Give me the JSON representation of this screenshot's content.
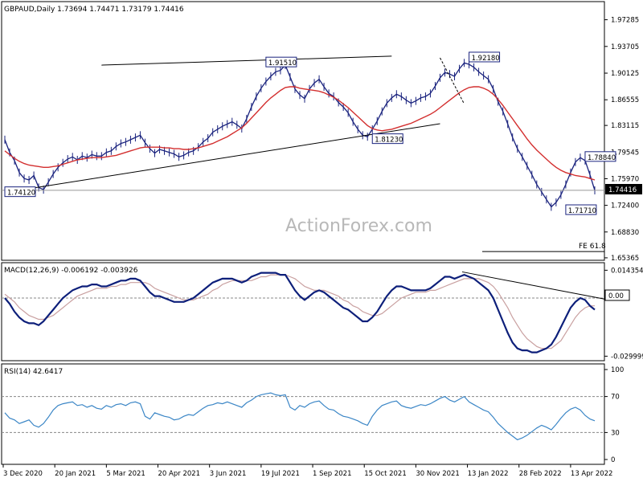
{
  "chart_data": [
    {
      "type": "line",
      "title": "GBPAUD,Daily  1.73694 1.74471 1.73179 1.74416",
      "y_ticks": [
        "1.97285",
        "1.93705",
        "1.90125",
        "1.86555",
        "1.83115",
        "1.79545",
        "1.75970",
        "1.72400",
        "1.68830",
        "1.65365"
      ],
      "ylim": [
        1.6525,
        1.995
      ],
      "current_price": "1.74416",
      "watermark": "ActionForex.com",
      "annotations": [
        {
          "text": "1.74120",
          "x": 0,
          "y": 1.7412
        },
        {
          "text": "1.91510",
          "x": 27,
          "y": 1.9151
        },
        {
          "text": "1.81230",
          "x": 38,
          "y": 1.8123
        },
        {
          "text": "1.92180",
          "x": 48,
          "y": 1.9218
        },
        {
          "text": "1.78840",
          "x": 60,
          "y": 1.7884
        },
        {
          "text": "1.71710",
          "x": 58,
          "y": 1.7171
        }
      ],
      "fe_label": "FE 61.8",
      "fe_level": 1.662,
      "close_series": [
        1.812,
        1.795,
        1.784,
        1.768,
        1.76,
        1.758,
        1.764,
        1.748,
        1.745,
        1.755,
        1.766,
        1.775,
        1.781,
        1.786,
        1.789,
        1.785,
        1.79,
        1.788,
        1.792,
        1.79,
        1.79,
        1.795,
        1.797,
        1.803,
        1.807,
        1.809,
        1.812,
        1.815,
        1.818,
        1.808,
        1.8,
        1.794,
        1.799,
        1.797,
        1.795,
        1.793,
        1.789,
        1.791,
        1.795,
        1.797,
        1.802,
        1.809,
        1.814,
        1.822,
        1.826,
        1.83,
        1.833,
        1.836,
        1.832,
        1.827,
        1.84,
        1.856,
        1.87,
        1.881,
        1.89,
        1.897,
        1.903,
        1.905,
        1.912,
        1.896,
        1.88,
        1.872,
        1.867,
        1.88,
        1.888,
        1.893,
        1.883,
        1.874,
        1.87,
        1.862,
        1.856,
        1.848,
        1.836,
        1.826,
        1.818,
        1.816,
        1.826,
        1.837,
        1.85,
        1.861,
        1.868,
        1.873,
        1.87,
        1.865,
        1.861,
        1.864,
        1.868,
        1.87,
        1.874,
        1.884,
        1.895,
        1.902,
        1.9,
        1.897,
        1.907,
        1.915,
        1.913,
        1.909,
        1.903,
        1.898,
        1.893,
        1.88,
        1.863,
        1.85,
        1.833,
        1.815,
        1.8,
        1.789,
        1.777,
        1.765,
        1.752,
        1.742,
        1.732,
        1.722,
        1.728,
        1.738,
        1.752,
        1.768,
        1.782,
        1.788,
        1.784,
        1.765,
        1.744
      ],
      "ma_series": [
        1.797,
        1.792,
        1.787,
        1.783,
        1.78,
        1.778,
        1.777,
        1.776,
        1.775,
        1.775,
        1.776,
        1.777,
        1.779,
        1.781,
        1.783,
        1.785,
        1.786,
        1.787,
        1.788,
        1.788,
        1.788,
        1.789,
        1.79,
        1.791,
        1.793,
        1.795,
        1.797,
        1.799,
        1.801,
        1.802,
        1.802,
        1.802,
        1.802,
        1.801,
        1.801,
        1.8,
        1.8,
        1.799,
        1.799,
        1.8,
        1.801,
        1.803,
        1.805,
        1.807,
        1.81,
        1.813,
        1.816,
        1.82,
        1.824,
        1.828,
        1.834,
        1.841,
        1.848,
        1.855,
        1.862,
        1.868,
        1.873,
        1.878,
        1.882,
        1.883,
        1.883,
        1.881,
        1.88,
        1.879,
        1.878,
        1.877,
        1.875,
        1.872,
        1.869,
        1.865,
        1.86,
        1.855,
        1.849,
        1.843,
        1.837,
        1.831,
        1.827,
        1.825,
        1.824,
        1.825,
        1.826,
        1.828,
        1.83,
        1.832,
        1.834,
        1.837,
        1.84,
        1.843,
        1.846,
        1.85,
        1.855,
        1.86,
        1.865,
        1.87,
        1.875,
        1.879,
        1.882,
        1.883,
        1.883,
        1.881,
        1.878,
        1.873,
        1.866,
        1.858,
        1.849,
        1.84,
        1.831,
        1.822,
        1.813,
        1.805,
        1.798,
        1.792,
        1.786,
        1.78,
        1.775,
        1.771,
        1.768,
        1.766,
        1.764,
        1.763,
        1.762,
        1.76,
        1.758
      ]
    },
    {
      "type": "line",
      "title": "MACD(12,26,9) -0.006192 -0.003926",
      "y_ticks": [
        "0.014354",
        "0.00",
        "-0.029999"
      ],
      "ylim": [
        -0.0315,
        0.017
      ],
      "current_value": "0.00",
      "macd_series": [
        0.0,
        -0.003,
        -0.007,
        -0.01,
        -0.012,
        -0.013,
        -0.013,
        -0.014,
        -0.012,
        -0.009,
        -0.006,
        -0.003,
        0.0,
        0.002,
        0.004,
        0.005,
        0.006,
        0.006,
        0.007,
        0.007,
        0.006,
        0.006,
        0.007,
        0.008,
        0.009,
        0.009,
        0.01,
        0.01,
        0.009,
        0.006,
        0.003,
        0.001,
        0.001,
        0.0,
        -0.001,
        -0.002,
        -0.002,
        -0.002,
        -0.001,
        0.0,
        0.002,
        0.004,
        0.006,
        0.008,
        0.009,
        0.01,
        0.01,
        0.01,
        0.009,
        0.008,
        0.009,
        0.011,
        0.012,
        0.013,
        0.013,
        0.013,
        0.013,
        0.012,
        0.012,
        0.008,
        0.004,
        0.001,
        -0.001,
        0.001,
        0.003,
        0.004,
        0.003,
        0.001,
        -0.001,
        -0.003,
        -0.005,
        -0.006,
        -0.008,
        -0.01,
        -0.012,
        -0.012,
        -0.01,
        -0.007,
        -0.003,
        0.001,
        0.004,
        0.006,
        0.006,
        0.005,
        0.004,
        0.004,
        0.004,
        0.004,
        0.005,
        0.007,
        0.009,
        0.011,
        0.011,
        0.01,
        0.011,
        0.012,
        0.011,
        0.01,
        0.008,
        0.006,
        0.004,
        0.0,
        -0.006,
        -0.012,
        -0.018,
        -0.023,
        -0.026,
        -0.027,
        -0.027,
        -0.028,
        -0.028,
        -0.027,
        -0.026,
        -0.024,
        -0.02,
        -0.015,
        -0.01,
        -0.005,
        -0.002,
        0.0,
        -0.001,
        -0.004,
        -0.006
      ],
      "signal_series": [
        0.002,
        0.0,
        -0.002,
        -0.005,
        -0.007,
        -0.009,
        -0.01,
        -0.011,
        -0.011,
        -0.01,
        -0.009,
        -0.007,
        -0.005,
        -0.003,
        -0.001,
        0.001,
        0.002,
        0.003,
        0.004,
        0.005,
        0.005,
        0.005,
        0.006,
        0.006,
        0.007,
        0.007,
        0.008,
        0.008,
        0.008,
        0.008,
        0.007,
        0.005,
        0.004,
        0.003,
        0.002,
        0.001,
        0.0,
        -0.001,
        -0.001,
        -0.001,
        0.0,
        0.001,
        0.002,
        0.004,
        0.005,
        0.007,
        0.008,
        0.009,
        0.009,
        0.009,
        0.009,
        0.009,
        0.01,
        0.011,
        0.011,
        0.012,
        0.012,
        0.012,
        0.012,
        0.011,
        0.01,
        0.008,
        0.006,
        0.005,
        0.004,
        0.004,
        0.004,
        0.003,
        0.002,
        0.001,
        -0.001,
        -0.002,
        -0.004,
        -0.005,
        -0.007,
        -0.008,
        -0.009,
        -0.009,
        -0.008,
        -0.006,
        -0.004,
        -0.002,
        0.0,
        0.001,
        0.002,
        0.003,
        0.003,
        0.003,
        0.004,
        0.004,
        0.005,
        0.006,
        0.007,
        0.008,
        0.009,
        0.01,
        0.01,
        0.01,
        0.01,
        0.009,
        0.008,
        0.006,
        0.003,
        -0.001,
        -0.005,
        -0.01,
        -0.014,
        -0.018,
        -0.021,
        -0.023,
        -0.025,
        -0.026,
        -0.026,
        -0.026,
        -0.024,
        -0.022,
        -0.018,
        -0.014,
        -0.01,
        -0.007,
        -0.005,
        -0.004,
        -0.004
      ]
    },
    {
      "type": "line",
      "title": "RSI(14) 42.6417",
      "y_ticks": [
        "100",
        "70",
        "30",
        "0"
      ],
      "ylim": [
        0,
        100
      ],
      "rsi_series": [
        52,
        46,
        44,
        40,
        42,
        44,
        38,
        36,
        40,
        47,
        55,
        60,
        62,
        63,
        64,
        60,
        61,
        58,
        60,
        57,
        56,
        60,
        58,
        61,
        62,
        60,
        63,
        64,
        62,
        48,
        45,
        52,
        50,
        48,
        47,
        44,
        45,
        48,
        50,
        49,
        53,
        57,
        60,
        61,
        63,
        62,
        64,
        62,
        60,
        58,
        63,
        66,
        70,
        72,
        73,
        74,
        72,
        71,
        72,
        58,
        55,
        60,
        58,
        62,
        64,
        65,
        60,
        56,
        55,
        51,
        48,
        47,
        45,
        43,
        40,
        38,
        48,
        55,
        60,
        62,
        64,
        65,
        60,
        58,
        57,
        59,
        61,
        60,
        62,
        65,
        68,
        70,
        66,
        64,
        67,
        70,
        64,
        61,
        58,
        55,
        53,
        47,
        40,
        35,
        30,
        26,
        22,
        24,
        27,
        31,
        35,
        38,
        36,
        33,
        39,
        46,
        52,
        56,
        58,
        55,
        49,
        45,
        43
      ],
      "x_ticks": [
        "3 Dec 2020",
        "20 Jan 2021",
        "5 Mar 2021",
        "20 Apr 2021",
        "3 Jun 2021",
        "19 Jul 2021",
        "1 Sep 2021",
        "15 Oct 2021",
        "30 Nov 2021",
        "13 Jan 2022",
        "28 Feb 2022",
        "13 Apr 2022"
      ]
    }
  ]
}
